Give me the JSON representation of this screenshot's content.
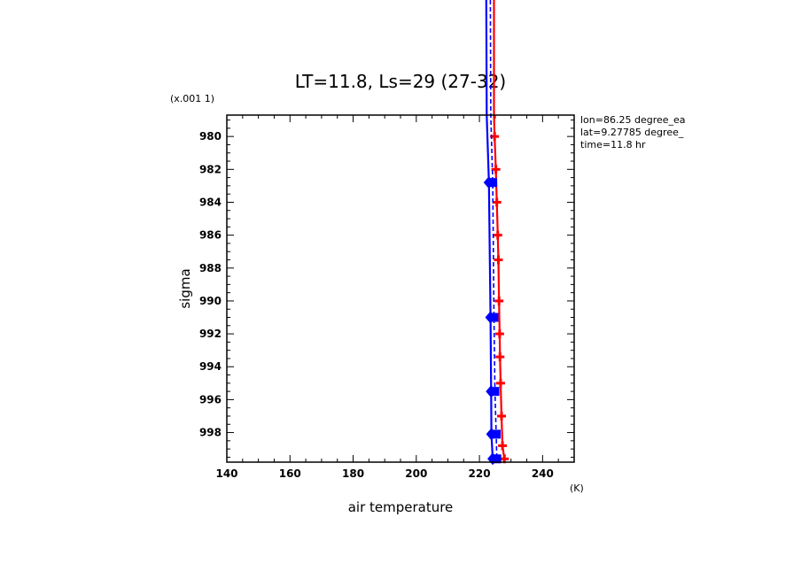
{
  "chart_data": {
    "type": "line",
    "title": "LT=11.8, Ls=29 (27-32)",
    "xlabel": "air temperature",
    "xunits": "(K)",
    "ylabel": "sigma",
    "yscale_label": "(x.001 1)",
    "xlim": [
      140,
      250
    ],
    "ylim": [
      999.8,
      978.7
    ],
    "y_reversed": true,
    "xticks": [
      140,
      160,
      180,
      200,
      220,
      240
    ],
    "yticks": [
      980,
      982,
      984,
      986,
      988,
      990,
      992,
      994,
      996,
      998
    ],
    "annotations": [
      "lon=86.25 degree_ea",
      "lat=9.27785 degree_",
      "time=11.8 hr"
    ],
    "colors": {
      "series_a": "#ff0000",
      "series_b": "#0000ff",
      "series_c": "#0000ff"
    },
    "series": [
      {
        "style": "solid-red-plus",
        "color": "#ff0000",
        "points": [
          {
            "x": 224.6,
            "y": 978.7
          },
          {
            "x": 224.8,
            "y": 980.0
          },
          {
            "x": 225.2,
            "y": 982.0
          },
          {
            "x": 225.5,
            "y": 984.0
          },
          {
            "x": 225.8,
            "y": 986.0
          },
          {
            "x": 226.0,
            "y": 987.5
          },
          {
            "x": 226.2,
            "y": 990.0
          },
          {
            "x": 226.4,
            "y": 992.0
          },
          {
            "x": 226.5,
            "y": 993.4
          },
          {
            "x": 226.7,
            "y": 995.0
          },
          {
            "x": 227.0,
            "y": 997.0
          },
          {
            "x": 227.3,
            "y": 998.8
          },
          {
            "x": 227.9,
            "y": 999.6
          }
        ]
      },
      {
        "style": "solid-blue-diamond",
        "color": "#0000ff",
        "points": [
          {
            "x": 222.3,
            "y": 978.7
          },
          {
            "x": 223.0,
            "y": 982.8
          },
          {
            "x": 223.5,
            "y": 991.0
          },
          {
            "x": 223.7,
            "y": 995.5
          },
          {
            "x": 223.8,
            "y": 998.1
          },
          {
            "x": 224.2,
            "y": 999.6
          }
        ]
      },
      {
        "style": "dashed-blue-square",
        "color": "#0000ff",
        "points": [
          {
            "x": 223.6,
            "y": 978.7
          },
          {
            "x": 224.2,
            "y": 982.8
          },
          {
            "x": 224.6,
            "y": 991.0
          },
          {
            "x": 224.9,
            "y": 995.5
          },
          {
            "x": 225.3,
            "y": 998.1
          },
          {
            "x": 225.5,
            "y": 999.6
          }
        ]
      }
    ]
  }
}
